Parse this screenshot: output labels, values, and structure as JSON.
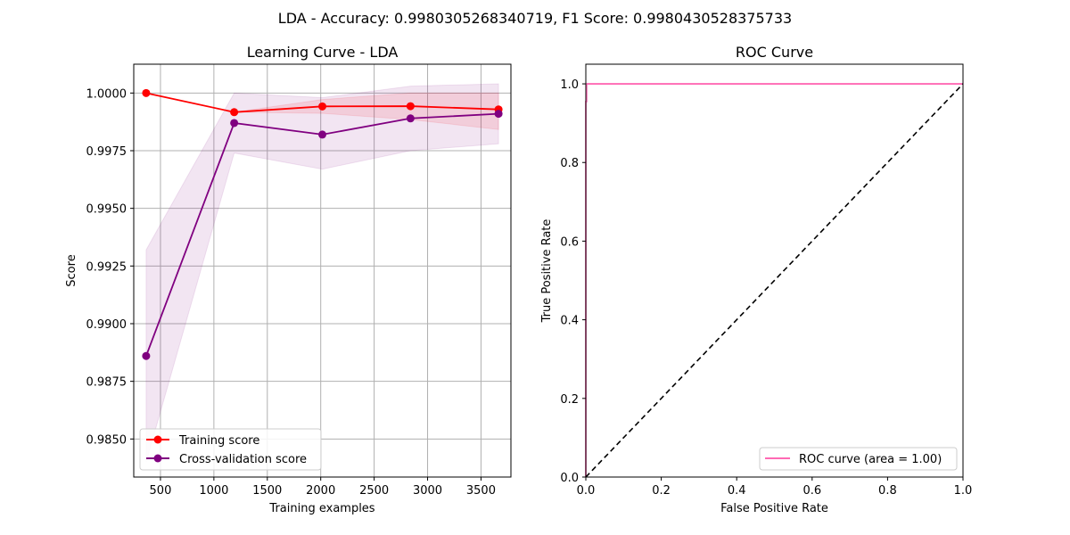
{
  "figure": {
    "suptitle": "LDA - Accuracy: 0.9980305268340719, F1 Score: 0.9980430528375733"
  },
  "chart_data": [
    {
      "type": "line",
      "title": "Learning Curve - LDA",
      "xlabel": "Training examples",
      "ylabel": "Score",
      "x": [
        366,
        1190,
        2015,
        2840,
        3664
      ],
      "xlim": [
        250,
        3780
      ],
      "ylim": [
        0.98335,
        1.00125
      ],
      "xticks": [
        500,
        1000,
        1500,
        2000,
        2500,
        3000,
        3500
      ],
      "xtick_labels": [
        "500",
        "1000",
        "1500",
        "2000",
        "2500",
        "3000",
        "3500"
      ],
      "yticks": [
        0.985,
        0.9875,
        0.99,
        0.9925,
        0.995,
        0.9975,
        1.0
      ],
      "ytick_labels": [
        "0.9850",
        "0.9875",
        "0.9900",
        "0.9925",
        "0.9950",
        "0.9975",
        "1.0000"
      ],
      "grid": true,
      "legend_position": "lower left",
      "series": [
        {
          "name": "Training score",
          "color": "#ff0000",
          "marker": "circle",
          "values": [
            1.0,
            0.99917,
            0.99942,
            0.99943,
            0.99929
          ],
          "band_lower": [
            1.0,
            0.99917,
            0.99912,
            0.99885,
            0.99842
          ],
          "band_upper": [
            1.0,
            0.99917,
            0.99972,
            1.0,
            1.0
          ]
        },
        {
          "name": "Cross-validation score",
          "color": "#800080",
          "marker": "circle",
          "values": [
            0.9886,
            0.9987,
            0.9982,
            0.9989,
            0.9991
          ],
          "band_lower": [
            0.984,
            0.9974,
            0.9967,
            0.9975,
            0.9978
          ],
          "band_upper": [
            0.9932,
            1.0,
            0.9998,
            1.0003,
            1.0004
          ]
        }
      ]
    },
    {
      "type": "line",
      "title": "ROC Curve",
      "xlabel": "False Positive Rate",
      "ylabel": "True Positive Rate",
      "xlim": [
        0,
        1
      ],
      "ylim": [
        0,
        1.05
      ],
      "xticks": [
        0,
        0.2,
        0.4,
        0.6,
        0.8,
        1.0
      ],
      "xtick_labels": [
        "0.0",
        "0.2",
        "0.4",
        "0.6",
        "0.8",
        "1.0"
      ],
      "yticks": [
        0,
        0.2,
        0.4,
        0.6,
        0.8,
        1.0
      ],
      "ytick_labels": [
        "0.0",
        "0.2",
        "0.4",
        "0.6",
        "0.8",
        "1.0"
      ],
      "grid": false,
      "legend_position": "lower right",
      "series": [
        {
          "name": "ROC curve (area = 1.00)",
          "color": "#ff69b4",
          "x": [
            0.0,
            0.0,
            0.0,
            0.002,
            0.002,
            1.0
          ],
          "y": [
            0.0,
            0.955,
            0.955,
            0.955,
            1.0,
            1.0
          ]
        },
        {
          "color": "#000000",
          "style": "dashed",
          "x": [
            0,
            1
          ],
          "y": [
            0,
            1
          ]
        }
      ]
    }
  ]
}
